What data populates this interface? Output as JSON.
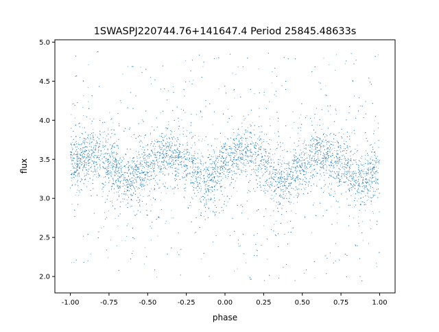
{
  "chart_data": {
    "type": "scatter",
    "title": "1SWASPJ220744.76+141647.4 Period 25845.48633s",
    "xlabel": "phase",
    "ylabel": "flux",
    "xlim": [
      -1.1,
      1.1
    ],
    "ylim": [
      1.79,
      5.03
    ],
    "xticks": [
      "-1.00",
      "-0.75",
      "-0.50",
      "-0.25",
      "0.00",
      "0.25",
      "0.50",
      "0.75",
      "1.00"
    ],
    "yticks": [
      "2.0",
      "2.5",
      "3.0",
      "3.5",
      "4.0",
      "4.5",
      "5.0"
    ],
    "grid": false,
    "legend": "none",
    "point_color": "#1f77b4",
    "trend": {
      "phase": [
        -1,
        -0.875,
        -0.75,
        -0.625,
        -0.5,
        -0.375,
        -0.25,
        -0.125,
        0,
        0.125,
        0.25,
        0.375,
        0.5,
        0.625,
        0.75,
        0.875,
        1
      ],
      "flux": [
        3.45,
        3.58,
        3.45,
        3.22,
        3.4,
        3.58,
        3.45,
        3.2,
        3.45,
        3.6,
        3.45,
        3.22,
        3.4,
        3.58,
        3.45,
        3.2,
        3.35
      ]
    },
    "flux_range": [
      1.93,
      4.88
    ]
  }
}
